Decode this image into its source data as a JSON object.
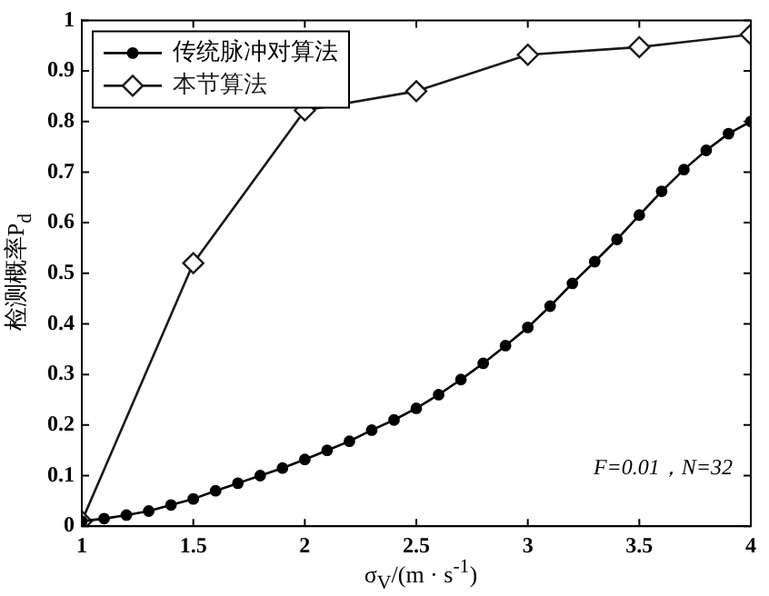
{
  "chart_data": {
    "type": "line",
    "xlabel": "σ$_{V}$/(m · s$^{-1}$)",
    "ylabel": "检测概率P$_{d}$",
    "xlim": [
      1,
      4
    ],
    "xticks": [
      1,
      1.5,
      2,
      2.5,
      3,
      3.5,
      4
    ],
    "ylim": [
      0,
      1
    ],
    "yticks": [
      0,
      0.1,
      0.2,
      0.3,
      0.4,
      0.5,
      0.6,
      0.7,
      0.8,
      0.9,
      1
    ],
    "grid": false,
    "legend": "top left",
    "line_style": "solid",
    "annotations": [
      "F=0.01，N=32"
    ],
    "series": [
      {
        "name": "传统脉冲对算法",
        "color": "#000000",
        "marker": "circle",
        "x": [
          1,
          1.1,
          1.2,
          1.3,
          1.4,
          1.5,
          1.6,
          1.7,
          1.8,
          1.9,
          2,
          2.1,
          2.2,
          2.3,
          2.4,
          2.5,
          2.6,
          2.7,
          2.8,
          2.9,
          3,
          3.1,
          3.2,
          3.3,
          3.4,
          3.5,
          3.6,
          3.7,
          3.8,
          3.9,
          4
        ],
        "values": [
          0.01,
          0.015,
          0.022,
          0.03,
          0.042,
          0.054,
          0.07,
          0.085,
          0.1,
          0.115,
          0.132,
          0.15,
          0.168,
          0.19,
          0.21,
          0.233,
          0.26,
          0.29,
          0.322,
          0.357,
          0.393,
          0.435,
          0.48,
          0.523,
          0.567,
          0.615,
          0.662,
          0.705,
          0.743,
          0.776,
          0.8
        ]
      },
      {
        "name": "本节算法",
        "color": "#1a1a1a",
        "marker": "diamond",
        "x": [
          1,
          1.5,
          2,
          2.5,
          3,
          3.5,
          4
        ],
        "values": [
          0.01,
          0.52,
          0.822,
          0.86,
          0.932,
          0.947,
          0.972
        ]
      }
    ]
  }
}
